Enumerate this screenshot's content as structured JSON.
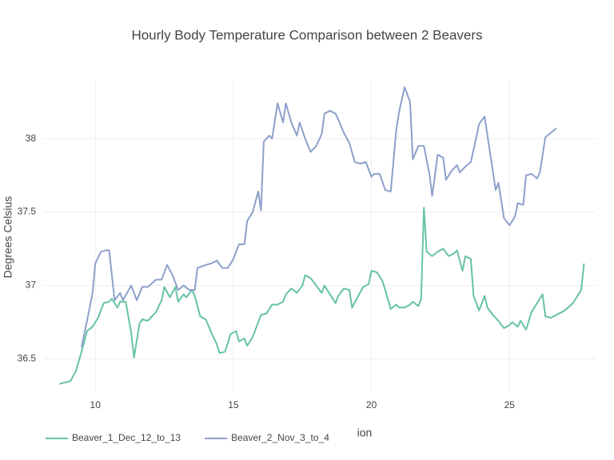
{
  "chart_data": {
    "type": "line",
    "title": "Hourly Body Temperature Comparison between 2 Beavers",
    "xlabel": "ion",
    "ylabel": "Degrees Celsius",
    "xlim": [
      8.14,
      28.12
    ],
    "ylim": [
      36.28,
      38.4
    ],
    "xticks": [
      10,
      15,
      20,
      25
    ],
    "yticks": [
      36.5,
      37,
      37.5,
      38
    ],
    "grid": true,
    "legend": "bottom-left",
    "series": [
      {
        "name": "Beaver_1_Dec_12_to_13",
        "color": "#66c2a5",
        "x": [
          8.7,
          9.1,
          9.3,
          9.5,
          9.7,
          9.9,
          10.1,
          10.2,
          10.3,
          10.5,
          10.6,
          10.8,
          10.9,
          11.1,
          11.3,
          11.4,
          11.6,
          11.7,
          11.9,
          12.0,
          12.2,
          12.4,
          12.5,
          12.7,
          12.9,
          13.0,
          13.2,
          13.3,
          13.5,
          13.6,
          13.8,
          14.0,
          14.2,
          14.4,
          14.5,
          14.7,
          14.9,
          15.1,
          15.2,
          15.4,
          15.5,
          15.7,
          15.9,
          16.0,
          16.2,
          16.4,
          16.6,
          16.8,
          16.9,
          17.1,
          17.3,
          17.5,
          17.6,
          17.8,
          18.0,
          18.2,
          18.3,
          18.5,
          18.7,
          18.8,
          19.0,
          19.2,
          19.3,
          19.5,
          19.7,
          19.9,
          20.0,
          20.2,
          20.4,
          20.5,
          20.7,
          20.9,
          21.0,
          21.2,
          21.4,
          21.5,
          21.7,
          21.8,
          21.9,
          22.0,
          22.2,
          22.4,
          22.6,
          22.8,
          23.0,
          23.1,
          23.3,
          23.4,
          23.6,
          23.7,
          23.9,
          24.1,
          24.2,
          24.4,
          24.6,
          24.8,
          25.0,
          25.1,
          25.3,
          25.4,
          25.6,
          25.8,
          26.0,
          26.2,
          26.3,
          26.5,
          27.0,
          27.3,
          27.6,
          27.7
        ],
        "values": [
          36.33,
          36.35,
          36.42,
          36.55,
          36.69,
          36.72,
          36.78,
          36.83,
          36.88,
          36.89,
          36.91,
          36.85,
          36.89,
          36.89,
          36.68,
          36.51,
          36.74,
          36.77,
          36.76,
          36.78,
          36.82,
          36.9,
          36.99,
          36.92,
          36.99,
          36.89,
          36.94,
          36.92,
          36.97,
          36.93,
          36.79,
          36.77,
          36.68,
          36.6,
          36.54,
          36.55,
          36.67,
          36.69,
          36.62,
          36.64,
          36.59,
          36.65,
          36.75,
          36.8,
          36.81,
          36.87,
          36.87,
          36.89,
          36.94,
          36.98,
          36.95,
          37.0,
          37.07,
          37.05,
          37.0,
          36.95,
          37.0,
          36.94,
          36.88,
          36.93,
          36.98,
          36.97,
          36.85,
          36.92,
          36.99,
          37.01,
          37.1,
          37.09,
          37.03,
          36.97,
          36.84,
          36.87,
          36.85,
          36.85,
          36.87,
          36.89,
          36.86,
          36.91,
          37.53,
          37.23,
          37.2,
          37.23,
          37.25,
          37.2,
          37.22,
          37.24,
          37.1,
          37.2,
          37.18,
          36.93,
          36.83,
          36.93,
          36.85,
          36.8,
          36.76,
          36.71,
          36.73,
          36.75,
          36.72,
          36.76,
          36.7,
          36.82,
          36.88,
          36.94,
          36.79,
          36.78,
          36.83,
          36.88,
          36.97,
          37.15
        ]
      },
      {
        "name": "Beaver_2_Nov_3_to_4",
        "color": "#8da0cb",
        "x": [
          9.5,
          9.7,
          9.9,
          10.0,
          10.2,
          10.4,
          10.5,
          10.7,
          10.9,
          11.0,
          11.3,
          11.5,
          11.7,
          11.9,
          12.2,
          12.4,
          12.6,
          12.8,
          13.0,
          13.2,
          13.4,
          13.6,
          13.7,
          14.0,
          14.2,
          14.4,
          14.6,
          14.8,
          15.0,
          15.2,
          15.4,
          15.5,
          15.7,
          15.9,
          16.0,
          16.1,
          16.3,
          16.4,
          16.6,
          16.8,
          16.9,
          17.1,
          17.3,
          17.4,
          17.6,
          17.8,
          18.0,
          18.2,
          18.3,
          18.5,
          18.7,
          18.8,
          19.0,
          19.2,
          19.4,
          19.6,
          19.8,
          20.0,
          20.1,
          20.3,
          20.5,
          20.7,
          20.9,
          21.0,
          21.2,
          21.4,
          21.5,
          21.7,
          21.9,
          22.1,
          22.2,
          22.4,
          22.6,
          22.7,
          22.9,
          23.1,
          23.2,
          23.4,
          23.6,
          23.8,
          23.9,
          24.1,
          24.3,
          24.5,
          24.6,
          24.8,
          25.0,
          25.2,
          25.3,
          25.5,
          25.6,
          25.8,
          26.0,
          26.1,
          26.3,
          26.5,
          26.7
        ],
        "values": [
          36.58,
          36.76,
          36.95,
          37.15,
          37.23,
          37.24,
          37.24,
          36.9,
          36.95,
          36.9,
          37.0,
          36.9,
          36.99,
          36.99,
          37.04,
          37.04,
          37.14,
          37.07,
          36.97,
          37.0,
          36.97,
          36.97,
          37.12,
          37.14,
          37.15,
          37.17,
          37.12,
          37.12,
          37.18,
          37.28,
          37.28,
          37.44,
          37.5,
          37.64,
          37.51,
          37.98,
          38.02,
          38.0,
          38.24,
          38.11,
          38.24,
          38.11,
          38.02,
          38.11,
          38.0,
          37.91,
          37.95,
          38.03,
          38.17,
          38.19,
          38.17,
          38.13,
          38.04,
          37.97,
          37.84,
          37.83,
          37.84,
          37.74,
          37.76,
          37.76,
          37.65,
          37.64,
          38.06,
          38.18,
          38.35,
          38.25,
          37.86,
          37.95,
          37.95,
          37.76,
          37.61,
          37.89,
          37.87,
          37.72,
          37.78,
          37.82,
          37.77,
          37.81,
          37.84,
          38.01,
          38.1,
          38.15,
          37.9,
          37.65,
          37.7,
          37.46,
          37.41,
          37.47,
          37.56,
          37.55,
          37.75,
          37.76,
          37.73,
          37.77,
          38.01,
          38.04,
          38.07
        ]
      }
    ]
  }
}
